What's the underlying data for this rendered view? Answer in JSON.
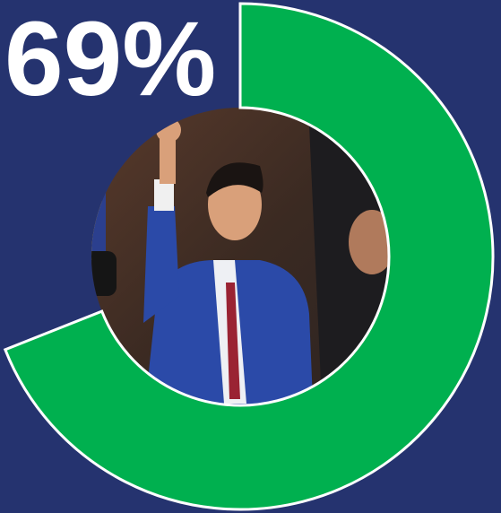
{
  "chart_data": {
    "type": "donut",
    "values": [
      69
    ],
    "value_labels": [
      "69%"
    ],
    "color": "#00b04f"
  }
}
